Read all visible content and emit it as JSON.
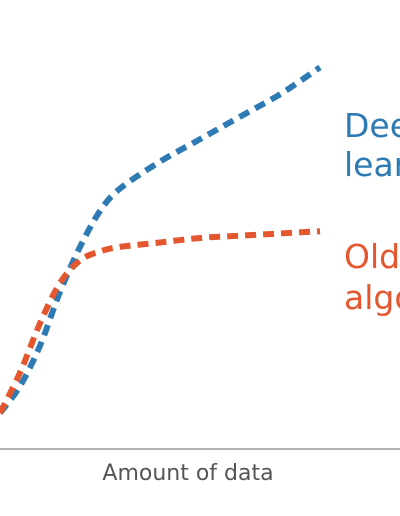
{
  "chart_data": {
    "type": "line",
    "title": "",
    "xlabel": "Amount of data",
    "ylabel": "",
    "xlim": [
      0,
      100
    ],
    "ylim": [
      0,
      100
    ],
    "grid": false,
    "legend": "inline-right",
    "series": [
      {
        "name_lines": [
          "Dee",
          "lear"
        ],
        "color": "#2e7bb4",
        "x": [
          0,
          5,
          10,
          15,
          20,
          25,
          30,
          40,
          50,
          60,
          70,
          80
        ],
        "y": [
          8,
          14,
          23,
          35,
          45,
          53,
          58,
          64,
          69,
          74,
          79,
          85
        ]
      },
      {
        "name_lines": [
          "Old",
          "algo"
        ],
        "color": "#e4572e",
        "x": [
          0,
          5,
          10,
          15,
          20,
          25,
          30,
          40,
          50,
          60,
          70,
          80
        ],
        "y": [
          8,
          17,
          28,
          37,
          42,
          44,
          45,
          46,
          47,
          47.5,
          48,
          48.5
        ]
      }
    ]
  }
}
